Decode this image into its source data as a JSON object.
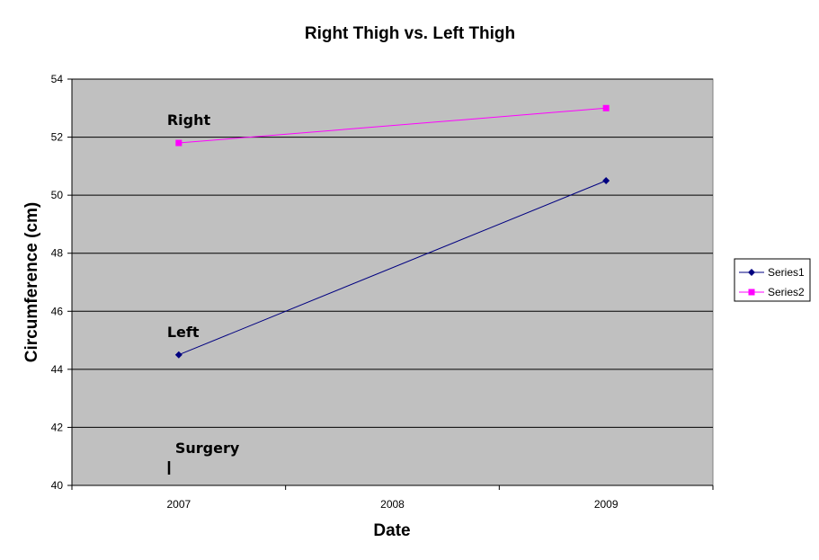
{
  "chart_data": {
    "type": "line",
    "title": "Right Thigh vs. Left Thigh",
    "xlabel": "Date",
    "ylabel": "Circumference (cm)",
    "categories": [
      "2007",
      "2008",
      "2009"
    ],
    "ylim": [
      40,
      54
    ],
    "yticks": [
      40,
      42,
      44,
      46,
      48,
      50,
      52,
      54
    ],
    "grid": true,
    "legend_position": "right",
    "plot_background": "#c0c0c0",
    "series": [
      {
        "name": "Series1",
        "x": [
          "2007",
          "2009"
        ],
        "values": [
          44.5,
          50.5
        ],
        "color": "#000080",
        "marker": "diamond"
      },
      {
        "name": "Series2",
        "x": [
          "2007",
          "2009"
        ],
        "values": [
          51.8,
          53.0
        ],
        "color": "#ff00ff",
        "marker": "square"
      }
    ],
    "annotations": [
      {
        "text": "Right",
        "x": "2007",
        "y": 52.6
      },
      {
        "text": "Left",
        "x": "2007",
        "y": 45.3
      },
      {
        "text": "Surgery",
        "x": "2007",
        "y": 41.3
      }
    ]
  }
}
